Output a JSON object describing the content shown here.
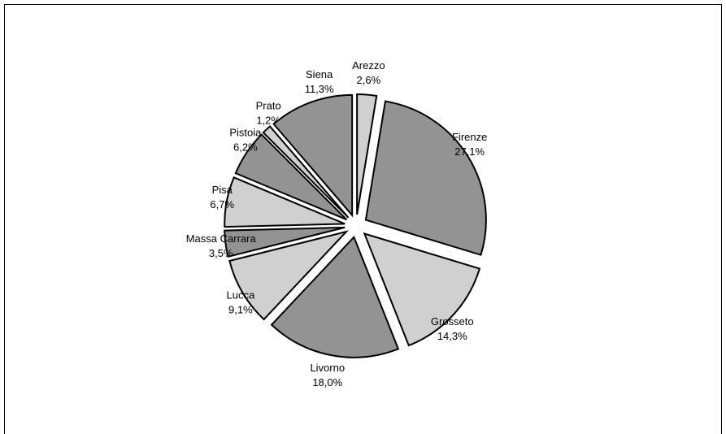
{
  "chart_data": {
    "type": "pie",
    "categories": [
      "Arezzo",
      "Firenze",
      "Grosseto",
      "Livorno",
      "Lucca",
      "Massa Carrara",
      "Pisa",
      "Pistoia",
      "Prato",
      "Siena"
    ],
    "values": [
      2.6,
      27.1,
      14.3,
      18.0,
      9.1,
      3.5,
      6.7,
      6.2,
      1.2,
      11.3
    ],
    "value_labels": [
      "2,6%",
      "27,1%",
      "14,3%",
      "18,0%",
      "9,1%",
      "3,5%",
      "6,7%",
      "6,2%",
      "1,2%",
      "11,3%"
    ],
    "colors": [
      "#d0d0d0",
      "#939393",
      "#d0d0d0",
      "#939393",
      "#d0d0d0",
      "#939393",
      "#d0d0d0",
      "#939393",
      "#d0d0d0",
      "#939393"
    ]
  }
}
